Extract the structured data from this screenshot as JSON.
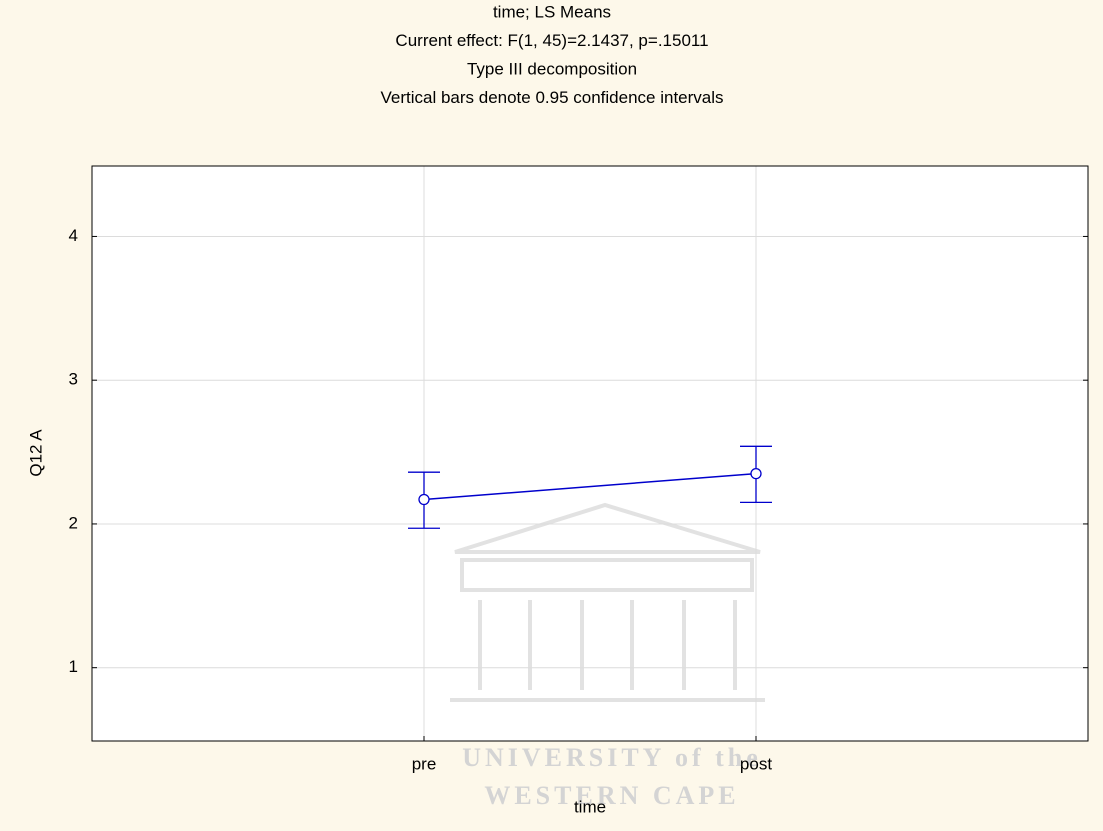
{
  "chart_data": {
    "type": "line",
    "title": [
      "time; LS Means",
      "Current effect: F(1, 45)=2.1437, p=.15011",
      "Type III decomposition",
      "Vertical bars denote 0.95 confidence intervals"
    ],
    "x_label": "time",
    "y_label": "Q12  A",
    "categories": [
      "pre",
      "post"
    ],
    "series": [
      {
        "color": "#0000cc",
        "values": [
          2.17,
          2.35
        ],
        "lower": [
          1.97,
          2.15
        ],
        "upper": [
          2.36,
          2.54
        ]
      }
    ],
    "ylim": [
      0.49,
      4.49
    ],
    "yticks": [
      1,
      2,
      3,
      4
    ],
    "grid": true,
    "watermark": [
      "UNIVERSITY of the",
      "WESTERN CAPE"
    ]
  }
}
